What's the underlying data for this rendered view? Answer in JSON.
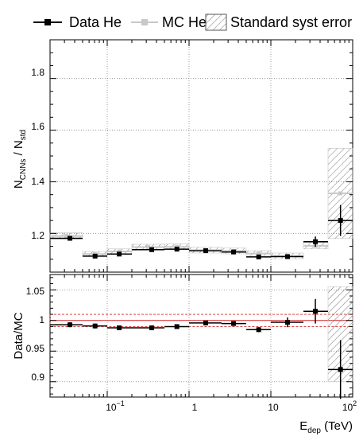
{
  "chart_data": [
    {
      "type": "scatter",
      "panel": "main",
      "xscale": "log",
      "xlim": [
        0.02,
        100
      ],
      "ylim": [
        1.05,
        1.95
      ],
      "ylabel": {
        "main": "N",
        "sub1": "CNNs",
        "sep": " / N",
        "sub2": "std"
      },
      "yticks": [
        "1.2",
        "1.4",
        "1.6",
        "1.8"
      ],
      "grid": true,
      "legend": {
        "position": "top",
        "entries": [
          {
            "label": "Data He",
            "color": "#000000"
          },
          {
            "label": "MC He",
            "color": "#c8c8c8"
          },
          {
            "label": "Standard syst error",
            "style": "hatched"
          }
        ]
      },
      "series": [
        {
          "name": "Data He",
          "color": "#000000",
          "points": [
            {
              "xlo": 0.02,
              "xhi": 0.05,
              "x": 0.035,
              "y": 1.181,
              "err": 0.004
            },
            {
              "xlo": 0.05,
              "xhi": 0.1,
              "x": 0.071,
              "y": 1.112,
              "err": 0.004
            },
            {
              "xlo": 0.1,
              "xhi": 0.2,
              "x": 0.14,
              "y": 1.12,
              "err": 0.004
            },
            {
              "xlo": 0.2,
              "xhi": 0.5,
              "x": 0.35,
              "y": 1.137,
              "err": 0.004
            },
            {
              "xlo": 0.5,
              "xhi": 1.0,
              "x": 0.71,
              "y": 1.139,
              "err": 0.004
            },
            {
              "xlo": 1.0,
              "xhi": 2.5,
              "x": 1.6,
              "y": 1.133,
              "err": 0.004
            },
            {
              "xlo": 2.5,
              "xhi": 5.0,
              "x": 3.5,
              "y": 1.128,
              "err": 0.005
            },
            {
              "xlo": 5.0,
              "xhi": 10.0,
              "x": 7.1,
              "y": 1.109,
              "err": 0.005
            },
            {
              "xlo": 10.0,
              "xhi": 25.0,
              "x": 16,
              "y": 1.11,
              "err": 0.007
            },
            {
              "xlo": 25.0,
              "xhi": 50.0,
              "x": 35,
              "y": 1.168,
              "err": 0.02
            },
            {
              "xlo": 50.0,
              "xhi": 100.0,
              "x": 71,
              "y": 1.25,
              "err": 0.06
            }
          ]
        },
        {
          "name": "MC He",
          "color": "#c8c8c8",
          "points": [
            {
              "xlo": 0.02,
              "xhi": 0.05,
              "y": 1.19
            },
            {
              "xlo": 0.05,
              "xhi": 0.1,
              "y": 1.12
            },
            {
              "xlo": 0.1,
              "xhi": 0.2,
              "y": 1.13
            },
            {
              "xlo": 0.2,
              "xhi": 0.5,
              "y": 1.147
            },
            {
              "xlo": 0.5,
              "xhi": 1.0,
              "y": 1.148
            },
            {
              "xlo": 1.0,
              "xhi": 2.5,
              "y": 1.135
            },
            {
              "xlo": 2.5,
              "xhi": 5.0,
              "y": 1.132
            },
            {
              "xlo": 5.0,
              "xhi": 10.0,
              "y": 1.122
            },
            {
              "xlo": 10.0,
              "xhi": 25.0,
              "y": 1.113
            },
            {
              "xlo": 25.0,
              "xhi": 50.0,
              "y": 1.152
            },
            {
              "xlo": 50.0,
              "xhi": 100.0,
              "y": 1.355
            }
          ]
        }
      ],
      "syst_error": [
        {
          "xlo": 0.02,
          "xhi": 0.05,
          "ylo": 1.178,
          "yhi": 1.202
        },
        {
          "xlo": 0.05,
          "xhi": 0.1,
          "ylo": 1.11,
          "yhi": 1.13
        },
        {
          "xlo": 0.1,
          "xhi": 0.2,
          "ylo": 1.12,
          "yhi": 1.14
        },
        {
          "xlo": 0.2,
          "xhi": 0.5,
          "ylo": 1.135,
          "yhi": 1.158
        },
        {
          "xlo": 0.5,
          "xhi": 1.0,
          "ylo": 1.137,
          "yhi": 1.159
        },
        {
          "xlo": 1.0,
          "xhi": 2.5,
          "ylo": 1.124,
          "yhi": 1.146
        },
        {
          "xlo": 2.5,
          "xhi": 5.0,
          "ylo": 1.121,
          "yhi": 1.143
        },
        {
          "xlo": 5.0,
          "xhi": 10.0,
          "ylo": 1.111,
          "yhi": 1.133
        },
        {
          "xlo": 10.0,
          "xhi": 25.0,
          "ylo": 1.102,
          "yhi": 1.124
        },
        {
          "xlo": 25.0,
          "xhi": 50.0,
          "ylo": 1.14,
          "yhi": 1.165
        },
        {
          "xlo": 50.0,
          "xhi": 100.0,
          "ylo": 1.18,
          "yhi": 1.53
        }
      ]
    },
    {
      "type": "scatter",
      "panel": "ratio",
      "xscale": "log",
      "xlim": [
        0.02,
        100
      ],
      "ylim": [
        0.875,
        1.075
      ],
      "xlabel": {
        "main": "E",
        "sub": "dep",
        "unit": " (TeV)"
      },
      "ylabel": "Data/MC",
      "yticks": [
        "0.9",
        "0.95",
        "1",
        "1.05"
      ],
      "xticks": [
        {
          "value": 0.1,
          "base": "10",
          "exp": "−1"
        },
        {
          "value": 1,
          "label": "1"
        },
        {
          "value": 10,
          "label": "10"
        },
        {
          "value": 100,
          "base": "10",
          "exp": "2"
        }
      ],
      "reference_band": {
        "center": 1.0,
        "lo": 0.99,
        "hi": 1.01,
        "color": "#d62728"
      },
      "grid": true,
      "points": [
        {
          "xlo": 0.02,
          "xhi": 0.05,
          "x": 0.035,
          "y": 0.993,
          "err": 0.004
        },
        {
          "xlo": 0.05,
          "xhi": 0.1,
          "x": 0.071,
          "y": 0.991,
          "err": 0.004
        },
        {
          "xlo": 0.1,
          "xhi": 0.2,
          "x": 0.14,
          "y": 0.988,
          "err": 0.003
        },
        {
          "xlo": 0.2,
          "xhi": 0.5,
          "x": 0.35,
          "y": 0.988,
          "err": 0.003
        },
        {
          "xlo": 0.5,
          "xhi": 1.0,
          "x": 0.71,
          "y": 0.99,
          "err": 0.003
        },
        {
          "xlo": 1.0,
          "xhi": 2.5,
          "x": 1.6,
          "y": 0.996,
          "err": 0.003
        },
        {
          "xlo": 2.5,
          "xhi": 5.0,
          "x": 3.5,
          "y": 0.995,
          "err": 0.004
        },
        {
          "xlo": 5.0,
          "xhi": 10.0,
          "x": 7.1,
          "y": 0.985,
          "err": 0.004
        },
        {
          "xlo": 10.0,
          "xhi": 25.0,
          "x": 16,
          "y": 0.997,
          "err": 0.008
        },
        {
          "xlo": 25.0,
          "xhi": 50.0,
          "x": 35,
          "y": 1.015,
          "err": 0.02
        },
        {
          "xlo": 50.0,
          "xhi": 100.0,
          "x": 71,
          "y": 0.92,
          "err": 0.048
        }
      ],
      "syst_error": [
        {
          "xlo": 50.0,
          "xhi": 100.0,
          "ylo": 0.9,
          "yhi": 1.055
        }
      ]
    }
  ]
}
